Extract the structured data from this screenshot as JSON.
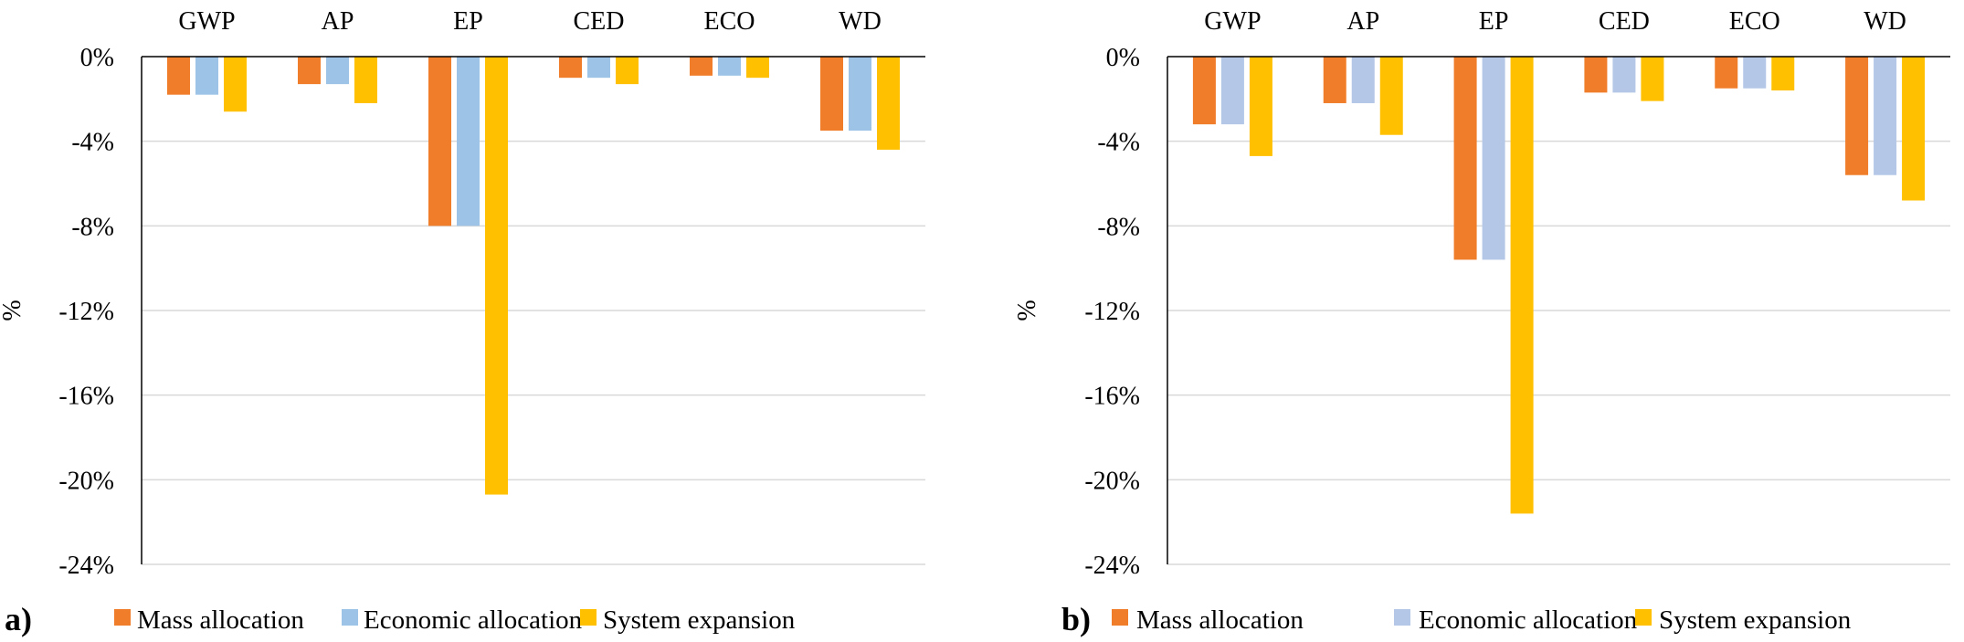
{
  "chart_data": [
    {
      "type": "bar",
      "panel_label": "a)",
      "categories": [
        "GWP",
        "AP",
        "EP",
        "CED",
        "ECO",
        "WD"
      ],
      "series": [
        {
          "name": "Mass allocation",
          "values": [
            -1.8,
            -1.3,
            -8.0,
            -1.0,
            -0.9,
            -3.5
          ]
        },
        {
          "name": "Economic allocation",
          "values": [
            -1.8,
            -1.3,
            -8.0,
            -1.0,
            -0.9,
            -3.5
          ]
        },
        {
          "name": "System expansion",
          "values": [
            -2.6,
            -2.2,
            -20.7,
            -1.3,
            -1.0,
            -4.4
          ]
        }
      ],
      "ylabel": "%",
      "ylim": [
        -24,
        0
      ],
      "yticks": [
        "0%",
        "-4%",
        "-8%",
        "-12%",
        "-16%",
        "-20%",
        "-24%"
      ],
      "grid": true,
      "legend_position": "bottom",
      "colors": [
        "#f07d2a",
        "#9dc3e6",
        "#ffc000"
      ]
    },
    {
      "type": "bar",
      "panel_label": "b)",
      "categories": [
        "GWP",
        "AP",
        "EP",
        "CED",
        "ECO",
        "WD"
      ],
      "series": [
        {
          "name": "Mass allocation",
          "values": [
            -3.2,
            -2.2,
            -9.6,
            -1.7,
            -1.5,
            -5.6
          ]
        },
        {
          "name": "Economic allocation",
          "values": [
            -3.2,
            -2.2,
            -9.6,
            -1.7,
            -1.5,
            -5.6
          ]
        },
        {
          "name": "System expansion",
          "values": [
            -4.7,
            -3.7,
            -21.6,
            -2.1,
            -1.6,
            -6.8
          ]
        }
      ],
      "ylabel": "%",
      "ylim": [
        -24,
        0
      ],
      "yticks": [
        "0%",
        "-4%",
        "-8%",
        "-12%",
        "-16%",
        "-20%",
        "-24%"
      ],
      "grid": true,
      "legend_position": "bottom",
      "colors": [
        "#f07d2a",
        "#b4c7e7",
        "#ffc000"
      ]
    }
  ]
}
